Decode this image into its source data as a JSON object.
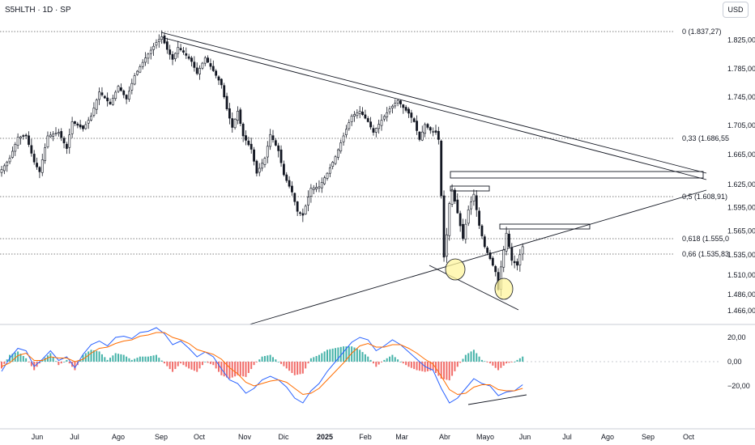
{
  "symbol_title": "S5HLTH · 1D · SP",
  "currency": "USD",
  "colors": {
    "up": "#131722",
    "down": "#131722",
    "macd": "#2962ff",
    "signal": "#ff6d00",
    "hist_up": "#26a69a",
    "hist_down": "#ef5350",
    "trend": "#131722",
    "fib": "#555555",
    "circle_fill": "#fff59d",
    "circle_stroke": "#131722"
  },
  "chart_data": [
    {
      "type": "candlestick",
      "title": "S5HLTH · 1D · SP",
      "x_tick_labels": [
        "Jun",
        "Jul",
        "Ago",
        "Sep",
        "Oct",
        "Nov",
        "Dic",
        "2025",
        "Feb",
        "Mar",
        "Abr",
        "Mayo",
        "Jun",
        "Jul",
        "Ago",
        "Sep",
        "Oct"
      ],
      "y_tick_labels": [
        "1.825,00",
        "1.785,00",
        "1.745,00",
        "1.705,00",
        "1.665,00",
        "1.625,00",
        "1.595,00",
        "1.565,00",
        "1.535,00",
        "1.510,00",
        "1.486,00",
        "1.466,00"
      ],
      "y_range": [
        1460,
        1845
      ],
      "price_path": [
        [
          0,
          1645
        ],
        [
          3,
          1660
        ],
        [
          6,
          1688
        ],
        [
          9,
          1690
        ],
        [
          12,
          1655
        ],
        [
          14,
          1642
        ],
        [
          17,
          1690
        ],
        [
          21,
          1695
        ],
        [
          24,
          1673
        ],
        [
          26,
          1710
        ],
        [
          30,
          1700
        ],
        [
          33,
          1718
        ],
        [
          36,
          1752
        ],
        [
          40,
          1735
        ],
        [
          43,
          1760
        ],
        [
          46,
          1742
        ],
        [
          49,
          1775
        ],
        [
          53,
          1800
        ],
        [
          57,
          1822
        ],
        [
          59,
          1830
        ],
        [
          61,
          1812
        ],
        [
          63,
          1798
        ],
        [
          65,
          1815
        ],
        [
          67,
          1808
        ],
        [
          70,
          1795
        ],
        [
          72,
          1778
        ],
        [
          75,
          1800
        ],
        [
          78,
          1782
        ],
        [
          81,
          1762
        ],
        [
          83,
          1728
        ],
        [
          85,
          1702
        ],
        [
          87,
          1725
        ],
        [
          89,
          1690
        ],
        [
          92,
          1672
        ],
        [
          94,
          1640
        ],
        [
          97,
          1660
        ],
        [
          99,
          1692
        ],
        [
          102,
          1670
        ],
        [
          104,
          1638
        ],
        [
          107,
          1615
        ],
        [
          109,
          1590
        ],
        [
          111,
          1585
        ],
        [
          114,
          1620
        ],
        [
          117,
          1622
        ],
        [
          120,
          1640
        ],
        [
          123,
          1662
        ],
        [
          126,
          1690
        ],
        [
          129,
          1718
        ],
        [
          132,
          1725
        ],
        [
          135,
          1710
        ],
        [
          137,
          1695
        ],
        [
          140,
          1712
        ],
        [
          143,
          1728
        ],
        [
          146,
          1740
        ],
        [
          148,
          1730
        ],
        [
          150,
          1722
        ],
        [
          152,
          1710
        ],
        [
          154,
          1685
        ],
        [
          156,
          1706
        ],
        [
          158,
          1698
        ],
        [
          160,
          1695
        ],
        [
          161,
          1685
        ],
        [
          162,
          1610
        ],
        [
          163,
          1532
        ],
        [
          164,
          1560
        ],
        [
          165,
          1600
        ],
        [
          166,
          1618
        ],
        [
          168,
          1588
        ],
        [
          170,
          1555
        ],
        [
          172,
          1592
        ],
        [
          174,
          1612
        ],
        [
          176,
          1572
        ],
        [
          178,
          1545
        ],
        [
          180,
          1530
        ],
        [
          182,
          1514
        ],
        [
          183,
          1492
        ],
        [
          184,
          1520
        ],
        [
          186,
          1562
        ],
        [
          188,
          1528
        ],
        [
          190,
          1522
        ],
        [
          191,
          1535
        ],
        [
          192,
          1545
        ]
      ],
      "fib_levels": [
        {
          "label": "0 (1.837,27)",
          "value": 1837.27
        },
        {
          "label": "0,33 (1.686,55",
          "value": 1686.55
        },
        {
          "label": "0,5 (1.608,91)",
          "value": 1608.91
        },
        {
          "label": "0,618 (1.555,0",
          "value": 1555.0
        },
        {
          "label": "0,66 (1.535,83",
          "value": 1535.83
        }
      ]
    },
    {
      "type": "line",
      "title": "",
      "y_tick_labels": [
        "20,00",
        "0,00",
        "−20,00"
      ],
      "y_range": [
        -37,
        30
      ],
      "series": [
        {
          "key": "macd",
          "color": "#2962ff",
          "values": [
            [
              0,
              -8
            ],
            [
              3,
              3
            ],
            [
              6,
              11
            ],
            [
              9,
              9
            ],
            [
              12,
              -4
            ],
            [
              15,
              2
            ],
            [
              18,
              9
            ],
            [
              21,
              1
            ],
            [
              24,
              4
            ],
            [
              27,
              -5
            ],
            [
              30,
              6
            ],
            [
              33,
              14
            ],
            [
              36,
              17
            ],
            [
              39,
              13
            ],
            [
              42,
              20
            ],
            [
              45,
              21
            ],
            [
              48,
              19
            ],
            [
              51,
              24
            ],
            [
              54,
              25
            ],
            [
              57,
              28
            ],
            [
              60,
              23
            ],
            [
              63,
              14
            ],
            [
              66,
              17
            ],
            [
              69,
              11
            ],
            [
              72,
              4
            ],
            [
              75,
              8
            ],
            [
              78,
              4
            ],
            [
              81,
              -6
            ],
            [
              84,
              -15
            ],
            [
              87,
              -18
            ],
            [
              90,
              -26
            ],
            [
              93,
              -22
            ],
            [
              96,
              -15
            ],
            [
              99,
              -12
            ],
            [
              102,
              -15
            ],
            [
              105,
              -21
            ],
            [
              108,
              -30
            ],
            [
              111,
              -34
            ],
            [
              114,
              -24
            ],
            [
              117,
              -18
            ],
            [
              120,
              -8
            ],
            [
              123,
              0
            ],
            [
              126,
              8
            ],
            [
              129,
              16
            ],
            [
              132,
              20
            ],
            [
              135,
              18
            ],
            [
              138,
              9
            ],
            [
              141,
              13
            ],
            [
              144,
              18
            ],
            [
              147,
              14
            ],
            [
              150,
              8
            ],
            [
              153,
              2
            ],
            [
              156,
              -4
            ],
            [
              159,
              -7
            ],
            [
              162,
              -22
            ],
            [
              165,
              -34
            ],
            [
              168,
              -30
            ],
            [
              171,
              -22
            ],
            [
              174,
              -14
            ],
            [
              177,
              -18
            ],
            [
              180,
              -20
            ],
            [
              183,
              -28
            ],
            [
              186,
              -25
            ],
            [
              189,
              -24
            ],
            [
              192,
              -19
            ]
          ]
        },
        {
          "key": "signal",
          "color": "#ff6d00",
          "values": [
            [
              0,
              -4
            ],
            [
              3,
              -1
            ],
            [
              6,
              5
            ],
            [
              9,
              7
            ],
            [
              12,
              1
            ],
            [
              15,
              1
            ],
            [
              18,
              4
            ],
            [
              21,
              3
            ],
            [
              24,
              3
            ],
            [
              27,
              0
            ],
            [
              30,
              2
            ],
            [
              33,
              7
            ],
            [
              36,
              11
            ],
            [
              39,
              12
            ],
            [
              42,
              15
            ],
            [
              45,
              17
            ],
            [
              48,
              18
            ],
            [
              51,
              21
            ],
            [
              54,
              22
            ],
            [
              57,
              24
            ],
            [
              60,
              24
            ],
            [
              63,
              20
            ],
            [
              66,
              18
            ],
            [
              69,
              15
            ],
            [
              72,
              10
            ],
            [
              75,
              8
            ],
            [
              78,
              6
            ],
            [
              81,
              2
            ],
            [
              84,
              -5
            ],
            [
              87,
              -10
            ],
            [
              90,
              -17
            ],
            [
              93,
              -20
            ],
            [
              96,
              -18
            ],
            [
              99,
              -16
            ],
            [
              102,
              -15
            ],
            [
              105,
              -17
            ],
            [
              108,
              -22
            ],
            [
              111,
              -27
            ],
            [
              114,
              -26
            ],
            [
              117,
              -22
            ],
            [
              120,
              -15
            ],
            [
              123,
              -8
            ],
            [
              126,
              -1
            ],
            [
              129,
              7
            ],
            [
              132,
              13
            ],
            [
              135,
              15
            ],
            [
              138,
              12
            ],
            [
              141,
              12
            ],
            [
              144,
              14
            ],
            [
              147,
              14
            ],
            [
              150,
              11
            ],
            [
              153,
              7
            ],
            [
              156,
              2
            ],
            [
              159,
              -2
            ],
            [
              162,
              -12
            ],
            [
              165,
              -23
            ],
            [
              168,
              -27
            ],
            [
              171,
              -26
            ],
            [
              174,
              -21
            ],
            [
              177,
              -19
            ],
            [
              180,
              -19
            ],
            [
              183,
              -23
            ],
            [
              186,
              -24
            ],
            [
              189,
              -24
            ],
            [
              192,
              -22
            ]
          ]
        }
      ]
    }
  ]
}
